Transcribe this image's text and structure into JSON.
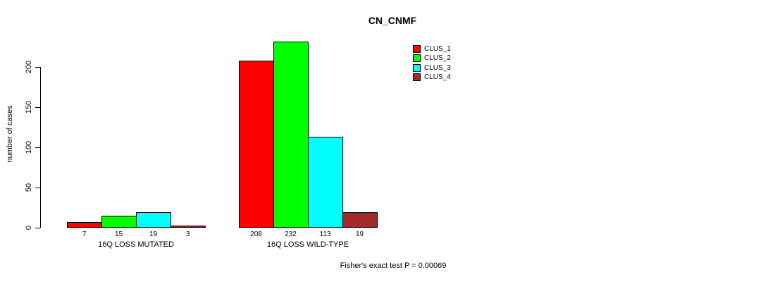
{
  "title": "CN_CNMF",
  "annotation": "Fisher's exact test P = 0.00069",
  "chart_data": {
    "type": "bar",
    "categories": [
      "16Q LOSS MUTATED",
      "16Q LOSS WILD-TYPE"
    ],
    "series": [
      {
        "name": "CLUS_1",
        "color": "#FF0000",
        "values": [
          7,
          208
        ]
      },
      {
        "name": "CLUS_2",
        "color": "#00FF00",
        "values": [
          15,
          232
        ]
      },
      {
        "name": "CLUS_3",
        "color": "#00FFFF",
        "values": [
          19,
          113
        ]
      },
      {
        "name": "CLUS_4",
        "color": "#A52A2A",
        "values": [
          3,
          19
        ]
      }
    ],
    "xlabel": "",
    "ylabel": "number of cases",
    "ylim": [
      0,
      235
    ],
    "yticks": [
      0,
      50,
      100,
      150,
      200
    ],
    "grid": false,
    "legend_position": "top-right",
    "legend_box": false,
    "bar_value_labels_shown": true
  }
}
